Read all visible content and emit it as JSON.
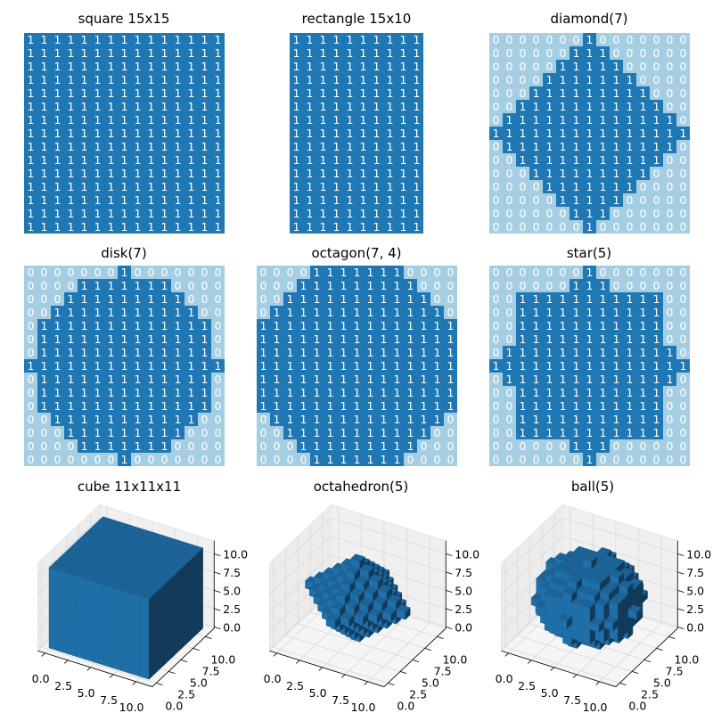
{
  "chart_data": [
    {
      "type": "heatmap",
      "title": "square 15x15",
      "rows": [
        "111111111111111",
        "111111111111111",
        "111111111111111",
        "111111111111111",
        "111111111111111",
        "111111111111111",
        "111111111111111",
        "111111111111111",
        "111111111111111",
        "111111111111111",
        "111111111111111",
        "111111111111111",
        "111111111111111",
        "111111111111111",
        "111111111111111"
      ]
    },
    {
      "type": "heatmap",
      "title": "rectangle 15x10",
      "rows": [
        "1111111111",
        "1111111111",
        "1111111111",
        "1111111111",
        "1111111111",
        "1111111111",
        "1111111111",
        "1111111111",
        "1111111111",
        "1111111111",
        "1111111111",
        "1111111111",
        "1111111111",
        "1111111111",
        "1111111111"
      ]
    },
    {
      "type": "heatmap",
      "title": "diamond(7)",
      "rows": [
        "000000010000000",
        "000000111000000",
        "000001111100000",
        "000011111110000",
        "000111111111000",
        "001111111111100",
        "011111111111110",
        "111111111111111",
        "011111111111110",
        "001111111111100",
        "000111111111000",
        "000011111110000",
        "000001111100000",
        "000000111000000",
        "000000010000000"
      ]
    },
    {
      "type": "heatmap",
      "title": "disk(7)",
      "rows": [
        "000000010000000",
        "000011111110000",
        "000111111111000",
        "001111111111100",
        "011111111111110",
        "011111111111110",
        "011111111111110",
        "111111111111111",
        "011111111111110",
        "011111111111110",
        "011111111111110",
        "001111111111100",
        "000111111111000",
        "000011111110000",
        "000000010000000"
      ]
    },
    {
      "type": "heatmap",
      "title": "octagon(7, 4)",
      "rows": [
        "000011111110000",
        "000111111111000",
        "001111111111100",
        "011111111111110",
        "111111111111111",
        "111111111111111",
        "111111111111111",
        "111111111111111",
        "111111111111111",
        "111111111111111",
        "111111111111111",
        "011111111111110",
        "001111111111100",
        "000111111111000",
        "000011111110000"
      ]
    },
    {
      "type": "heatmap",
      "title": "star(5)",
      "rows": [
        "000000010000000",
        "000000111000000",
        "001111111111100",
        "001111111111100",
        "001111111111100",
        "001111111111100",
        "011111111111110",
        "111111111111111",
        "011111111111110",
        "001111111111100",
        "001111111111100",
        "001111111111100",
        "001111111111100",
        "000000111000000",
        "000000010000000"
      ]
    },
    {
      "type": "voxels",
      "title": "cube 11x11x11",
      "shape": "cube",
      "size": 11,
      "xticks": [
        "0.0",
        "2.5",
        "5.0",
        "7.5",
        "10.0"
      ],
      "yticks": [
        "0.0",
        "2.5",
        "5.0",
        "7.5",
        "10.0"
      ],
      "zticks": [
        "0.0",
        "2.5",
        "5.0",
        "7.5",
        "10.0"
      ]
    },
    {
      "type": "voxels",
      "title": "octahedron(5)",
      "shape": "octahedron",
      "radius": 5,
      "xticks": [
        "0.0",
        "2.5",
        "5.0",
        "7.5",
        "10.0"
      ],
      "yticks": [
        "0.0",
        "2.5",
        "5.0",
        "7.5",
        "10.0"
      ],
      "zticks": [
        "0.0",
        "2.5",
        "5.0",
        "7.5",
        "10.0"
      ]
    },
    {
      "type": "voxels",
      "title": "ball(5)",
      "shape": "ball",
      "radius": 5,
      "xticks": [
        "0.0",
        "2.5",
        "5.0",
        "7.5",
        "10.0"
      ],
      "yticks": [
        "0.0",
        "2.5",
        "5.0",
        "7.5",
        "10.0"
      ],
      "zticks": [
        "0.0",
        "2.5",
        "5.0",
        "7.5",
        "10.0"
      ]
    }
  ],
  "colors": {
    "zero": "#a6cee3",
    "one": "#1f78b4",
    "text": "#ffffff",
    "voxel_front": "#1f6fa8",
    "voxel_top": "#1c6398",
    "voxel_side": "#123b5b",
    "pane": "#f2f2f2",
    "grid": "#d9d9d9"
  }
}
